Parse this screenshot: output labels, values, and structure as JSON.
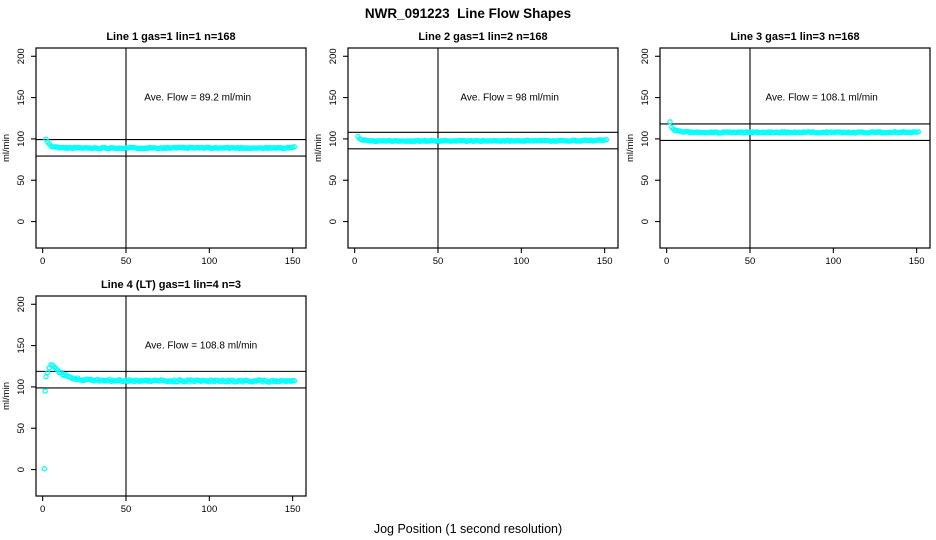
{
  "figure": {
    "title": "NWR_091223  Line Flow Shapes",
    "xlabel": "Jog Position (1 second resolution)",
    "background": "#FFFFFF",
    "point_color": "#00FFFF",
    "line_color": "#000000"
  },
  "chart_data": [
    {
      "type": "scatter",
      "title": "Line 1 gas=1 lin=1 n=168",
      "line_no": 1,
      "gas": 1,
      "lin": 1,
      "n": 168,
      "annotation": "Ave. Flow =  89.2  ml/min",
      "ave_flow": 89.2,
      "ylabel": "ml/min",
      "x_ticks": [
        0,
        50,
        100,
        150
      ],
      "y_ticks": [
        0,
        50,
        100,
        150,
        200
      ],
      "x_domain": [
        -4,
        158
      ],
      "y_domain": [
        -32,
        210
      ],
      "vline_x": 50,
      "hlines": [
        99.2,
        79.2
      ],
      "marker_color": "#00FFFF",
      "annotation_at": [
        93,
        150
      ],
      "x_end": 151,
      "sample_step": 1,
      "noise_amp": 0.7,
      "noise_seed": 11,
      "profile": [
        [
          2,
          99.5
        ],
        [
          3,
          96.5
        ],
        [
          4,
          93.5
        ],
        [
          5,
          91.5
        ],
        [
          6,
          90.5
        ],
        [
          8,
          89.8
        ],
        [
          12,
          89.2
        ],
        [
          30,
          89
        ],
        [
          80,
          89.2
        ],
        [
          145,
          89
        ],
        [
          149,
          89.5
        ],
        [
          151,
          90
        ]
      ],
      "outliers": []
    },
    {
      "type": "scatter",
      "title": "Line 2 gas=1 lin=2 n=168",
      "line_no": 2,
      "gas": 1,
      "lin": 2,
      "n": 168,
      "annotation": "Ave. Flow =  98  ml/min",
      "ave_flow": 98,
      "ylabel": "ml/min",
      "x_ticks": [
        0,
        50,
        100,
        150
      ],
      "y_ticks": [
        0,
        50,
        100,
        150,
        200
      ],
      "x_domain": [
        -4,
        158
      ],
      "y_domain": [
        -32,
        210
      ],
      "vline_x": 50,
      "hlines": [
        108,
        88
      ],
      "marker_color": "#00FFFF",
      "annotation_at": [
        93,
        150
      ],
      "x_end": 151,
      "sample_step": 1,
      "noise_amp": 0.6,
      "noise_seed": 22,
      "profile": [
        [
          2,
          103
        ],
        [
          3,
          100.5
        ],
        [
          4,
          99.3
        ],
        [
          6,
          98.3
        ],
        [
          9,
          97.8
        ],
        [
          15,
          97.5
        ],
        [
          60,
          97.6
        ],
        [
          120,
          97.8
        ],
        [
          146,
          98
        ],
        [
          149,
          98.8
        ],
        [
          151,
          99.5
        ]
      ],
      "outliers": []
    },
    {
      "type": "scatter",
      "title": "Line 3 gas=1 lin=3 n=168",
      "line_no": 3,
      "gas": 1,
      "lin": 3,
      "n": 168,
      "annotation": "Ave. Flow =  108.1  ml/min",
      "ave_flow": 108.1,
      "ylabel": "ml/min",
      "x_ticks": [
        0,
        50,
        100,
        150
      ],
      "y_ticks": [
        0,
        50,
        100,
        150,
        200
      ],
      "x_domain": [
        -4,
        158
      ],
      "y_domain": [
        -32,
        210
      ],
      "vline_x": 50,
      "hlines": [
        118.1,
        98.1
      ],
      "marker_color": "#00FFFF",
      "annotation_at": [
        93,
        150
      ],
      "x_end": 151,
      "sample_step": 1,
      "noise_amp": 0.7,
      "noise_seed": 33,
      "profile": [
        [
          2,
          120
        ],
        [
          3,
          113.5
        ],
        [
          4,
          111.5
        ],
        [
          5,
          110.5
        ],
        [
          7,
          109.3
        ],
        [
          10,
          108.5
        ],
        [
          16,
          108
        ],
        [
          40,
          107.8
        ],
        [
          100,
          107.9
        ],
        [
          148,
          108
        ],
        [
          151,
          108.5
        ]
      ],
      "outliers": []
    },
    {
      "type": "scatter",
      "title": "Line 4 (LT) gas=1 lin=4 n=3",
      "line_no": 4,
      "gas": 1,
      "lin": 4,
      "n": 3,
      "annotation": "Ave. Flow =  108.8  ml/min",
      "ave_flow": 108.8,
      "ylabel": "ml/min",
      "x_ticks": [
        0,
        50,
        100,
        150
      ],
      "y_ticks": [
        0,
        50,
        100,
        150,
        200
      ],
      "x_domain": [
        -4,
        158
      ],
      "y_domain": [
        -32,
        210
      ],
      "vline_x": 50,
      "hlines": [
        118.8,
        98.8
      ],
      "marker_color": "#00FFFF",
      "annotation_at": [
        95,
        150
      ],
      "x_end": 151,
      "sample_step": 1,
      "noise_amp": 1.2,
      "noise_seed": 44,
      "profile": [
        [
          2,
          112
        ],
        [
          3,
          117
        ],
        [
          4,
          123
        ],
        [
          5,
          127
        ],
        [
          6,
          126
        ],
        [
          7,
          124
        ],
        [
          8,
          122
        ],
        [
          10,
          118.5
        ],
        [
          12,
          115.5
        ],
        [
          15,
          113
        ],
        [
          18,
          111
        ],
        [
          22,
          109.5
        ],
        [
          27,
          108.5
        ],
        [
          35,
          107.8
        ],
        [
          50,
          107.5
        ],
        [
          70,
          107.4
        ],
        [
          100,
          107.2
        ],
        [
          130,
          107
        ],
        [
          151,
          106.8
        ]
      ],
      "outliers": [
        [
          1,
          1
        ],
        [
          1.5,
          95
        ]
      ]
    }
  ]
}
